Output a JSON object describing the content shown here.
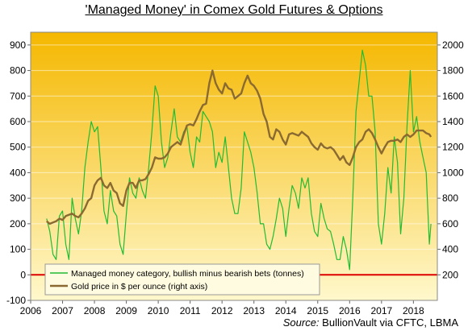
{
  "chart_data": {
    "type": "line",
    "title": "'Managed Money' in Comex Gold Futures & Options",
    "source_label": "Source:",
    "source_text": "BullionVault via CFTC, LBMA",
    "xlim": [
      2006,
      2018.75
    ],
    "ylim_left": [
      -100,
      950
    ],
    "ylim_right": [
      0,
      2100
    ],
    "x_ticks": [
      2006,
      2007,
      2008,
      2009,
      2010,
      2011,
      2012,
      2013,
      2014,
      2015,
      2016,
      2017,
      2018
    ],
    "y_left_ticks": [
      -100,
      0,
      100,
      200,
      300,
      400,
      500,
      600,
      700,
      800,
      900
    ],
    "y_right_ticks": [
      200,
      400,
      600,
      800,
      1000,
      1200,
      1400,
      1600,
      1800,
      2000
    ],
    "zero_line": 0,
    "legend_position": "bottom-left",
    "colors": {
      "managed_money": "#22bb33",
      "gold_price": "#8a6a30",
      "zero_line": "#dd0000",
      "bg_top": "#f5b800",
      "bg_bottom": "#fff8cc"
    },
    "series": [
      {
        "name": "Managed money category, bullish minus bearish bets (tonnes)",
        "axis": "left",
        "x": [
          2006.5,
          2006.6,
          2006.7,
          2006.8,
          2006.9,
          2007.0,
          2007.1,
          2007.2,
          2007.3,
          2007.4,
          2007.5,
          2007.6,
          2007.7,
          2007.8,
          2007.9,
          2008.0,
          2008.1,
          2008.2,
          2008.3,
          2008.4,
          2008.5,
          2008.6,
          2008.7,
          2008.8,
          2008.9,
          2009.0,
          2009.1,
          2009.2,
          2009.3,
          2009.4,
          2009.5,
          2009.6,
          2009.7,
          2009.8,
          2009.9,
          2010.0,
          2010.1,
          2010.2,
          2010.3,
          2010.4,
          2010.5,
          2010.6,
          2010.7,
          2010.8,
          2010.9,
          2011.0,
          2011.1,
          2011.2,
          2011.3,
          2011.4,
          2011.5,
          2011.6,
          2011.7,
          2011.8,
          2011.9,
          2012.0,
          2012.1,
          2012.2,
          2012.3,
          2012.4,
          2012.5,
          2012.6,
          2012.7,
          2012.8,
          2012.9,
          2013.0,
          2013.1,
          2013.2,
          2013.3,
          2013.4,
          2013.5,
          2013.6,
          2013.7,
          2013.8,
          2013.9,
          2014.0,
          2014.1,
          2014.2,
          2014.3,
          2014.4,
          2014.5,
          2014.6,
          2014.7,
          2014.8,
          2014.9,
          2015.0,
          2015.1,
          2015.2,
          2015.3,
          2015.4,
          2015.5,
          2015.6,
          2015.7,
          2015.8,
          2015.9,
          2016.0,
          2016.1,
          2016.2,
          2016.3,
          2016.4,
          2016.5,
          2016.6,
          2016.7,
          2016.8,
          2016.9,
          2017.0,
          2017.1,
          2017.2,
          2017.3,
          2017.4,
          2017.5,
          2017.6,
          2017.7,
          2017.8,
          2017.9,
          2018.0,
          2018.1,
          2018.2,
          2018.3,
          2018.4,
          2018.5,
          2018.55
        ],
        "values": [
          220,
          170,
          80,
          60,
          230,
          250,
          120,
          60,
          300,
          220,
          160,
          250,
          420,
          520,
          600,
          560,
          580,
          420,
          250,
          200,
          330,
          250,
          230,
          120,
          80,
          240,
          380,
          320,
          300,
          380,
          330,
          300,
          420,
          560,
          740,
          700,
          520,
          420,
          460,
          560,
          650,
          540,
          520,
          560,
          580,
          480,
          420,
          540,
          520,
          640,
          620,
          600,
          560,
          420,
          480,
          440,
          540,
          420,
          300,
          240,
          240,
          340,
          560,
          520,
          480,
          420,
          320,
          200,
          200,
          120,
          100,
          150,
          220,
          300,
          260,
          150,
          260,
          350,
          320,
          260,
          380,
          340,
          380,
          240,
          170,
          150,
          280,
          220,
          180,
          170,
          120,
          60,
          60,
          150,
          100,
          20,
          300,
          640,
          760,
          880,
          820,
          700,
          700,
          560,
          200,
          120,
          240,
          420,
          320,
          540,
          440,
          160,
          300,
          580,
          800,
          560,
          620,
          520,
          460,
          400,
          120,
          200
        ]
      },
      {
        "name": "Gold price in $ per ounce (right axis)",
        "axis": "right",
        "x": [
          2006.5,
          2006.6,
          2006.7,
          2006.8,
          2006.9,
          2007.0,
          2007.1,
          2007.2,
          2007.3,
          2007.4,
          2007.5,
          2007.6,
          2007.7,
          2007.8,
          2007.9,
          2008.0,
          2008.1,
          2008.2,
          2008.3,
          2008.4,
          2008.5,
          2008.6,
          2008.7,
          2008.8,
          2008.9,
          2009.0,
          2009.1,
          2009.2,
          2009.3,
          2009.4,
          2009.5,
          2009.6,
          2009.7,
          2009.8,
          2009.9,
          2010.0,
          2010.1,
          2010.2,
          2010.3,
          2010.4,
          2010.5,
          2010.6,
          2010.7,
          2010.8,
          2010.9,
          2011.0,
          2011.1,
          2011.2,
          2011.3,
          2011.4,
          2011.5,
          2011.6,
          2011.7,
          2011.8,
          2011.9,
          2012.0,
          2012.1,
          2012.2,
          2012.3,
          2012.4,
          2012.5,
          2012.6,
          2012.7,
          2012.8,
          2012.9,
          2013.0,
          2013.1,
          2013.2,
          2013.3,
          2013.4,
          2013.5,
          2013.6,
          2013.7,
          2013.8,
          2013.9,
          2014.0,
          2014.1,
          2014.2,
          2014.3,
          2014.4,
          2014.5,
          2014.6,
          2014.7,
          2014.8,
          2014.9,
          2015.0,
          2015.1,
          2015.2,
          2015.3,
          2015.4,
          2015.5,
          2015.6,
          2015.7,
          2015.8,
          2015.9,
          2016.0,
          2016.1,
          2016.2,
          2016.3,
          2016.4,
          2016.5,
          2016.6,
          2016.7,
          2016.8,
          2016.9,
          2017.0,
          2017.1,
          2017.2,
          2017.3,
          2017.4,
          2017.5,
          2017.6,
          2017.7,
          2017.8,
          2017.9,
          2018.0,
          2018.1,
          2018.2,
          2018.3,
          2018.4,
          2018.5,
          2018.55
        ],
        "values": [
          620,
          600,
          610,
          620,
          640,
          630,
          660,
          670,
          680,
          660,
          650,
          680,
          720,
          780,
          800,
          900,
          940,
          960,
          900,
          880,
          920,
          860,
          840,
          760,
          740,
          860,
          920,
          920,
          880,
          940,
          940,
          950,
          990,
          1040,
          1120,
          1110,
          1110,
          1120,
          1150,
          1200,
          1220,
          1240,
          1220,
          1300,
          1370,
          1380,
          1370,
          1420,
          1480,
          1530,
          1540,
          1700,
          1800,
          1700,
          1650,
          1620,
          1700,
          1660,
          1650,
          1580,
          1600,
          1620,
          1700,
          1760,
          1700,
          1680,
          1640,
          1580,
          1460,
          1400,
          1280,
          1260,
          1340,
          1320,
          1260,
          1220,
          1300,
          1310,
          1300,
          1290,
          1320,
          1300,
          1280,
          1230,
          1200,
          1180,
          1230,
          1200,
          1190,
          1200,
          1180,
          1140,
          1100,
          1130,
          1080,
          1060,
          1120,
          1200,
          1240,
          1260,
          1320,
          1340,
          1310,
          1260,
          1200,
          1150,
          1200,
          1240,
          1250,
          1250,
          1260,
          1240,
          1280,
          1300,
          1280,
          1300,
          1330,
          1330,
          1330,
          1310,
          1300,
          1280
        ]
      }
    ]
  }
}
